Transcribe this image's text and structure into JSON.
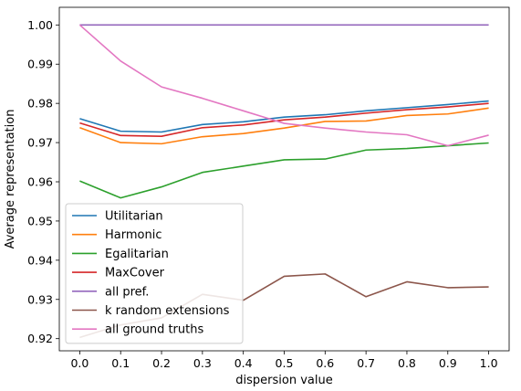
{
  "chart_data": {
    "type": "line",
    "xlabel": "dispersion value",
    "ylabel": "Average representation",
    "xlim": [
      -0.05,
      1.05
    ],
    "ylim": [
      0.9169,
      1.0045
    ],
    "xticks": [
      "0.0",
      "0.1",
      "0.2",
      "0.3",
      "0.4",
      "0.5",
      "0.6",
      "0.7",
      "0.8",
      "0.9",
      "1.0"
    ],
    "yticks": [
      "0.92",
      "0.93",
      "0.94",
      "0.95",
      "0.96",
      "0.97",
      "0.98",
      "0.99",
      "1.00"
    ],
    "grid": false,
    "legend_position": "lower-left",
    "x": [
      0.0,
      0.1,
      0.2,
      0.3,
      0.4,
      0.5,
      0.6,
      0.7,
      0.8,
      0.9,
      1.0
    ],
    "series": [
      {
        "name": "Utilitarian",
        "color": "#1f77b4",
        "values": [
          0.9761,
          0.9729,
          0.9727,
          0.9746,
          0.9753,
          0.9765,
          0.9771,
          0.9781,
          0.9789,
          0.9797,
          0.9806
        ]
      },
      {
        "name": "Harmonic",
        "color": "#ff7f0e",
        "values": [
          0.9738,
          0.97,
          0.9697,
          0.9715,
          0.9723,
          0.9737,
          0.9754,
          0.9755,
          0.9769,
          0.9773,
          0.9788
        ]
      },
      {
        "name": "Egalitarian",
        "color": "#2ca02c",
        "values": [
          0.9602,
          0.9559,
          0.9587,
          0.9624,
          0.964,
          0.9656,
          0.9658,
          0.9681,
          0.9685,
          0.9692,
          0.9699
        ]
      },
      {
        "name": "MaxCover",
        "color": "#d62728",
        "values": [
          0.975,
          0.9718,
          0.9716,
          0.9738,
          0.9745,
          0.9758,
          0.9765,
          0.9775,
          0.9784,
          0.9791,
          0.98
        ]
      },
      {
        "name": "all pref.",
        "color": "#9467bd",
        "values": [
          1.0,
          1.0,
          1.0,
          1.0,
          1.0,
          1.0,
          1.0,
          1.0,
          1.0,
          1.0,
          1.0
        ]
      },
      {
        "name": "k random extensions",
        "color": "#8c564b",
        "values": [
          0.9203,
          0.9235,
          0.9253,
          0.9313,
          0.9298,
          0.9359,
          0.9365,
          0.9307,
          0.9345,
          0.933,
          0.9332
        ]
      },
      {
        "name": "all ground truths",
        "color": "#e377c2",
        "values": [
          1.0,
          0.9908,
          0.9842,
          0.9813,
          0.9781,
          0.9749,
          0.9737,
          0.9727,
          0.972,
          0.9692,
          0.9719
        ]
      }
    ]
  }
}
